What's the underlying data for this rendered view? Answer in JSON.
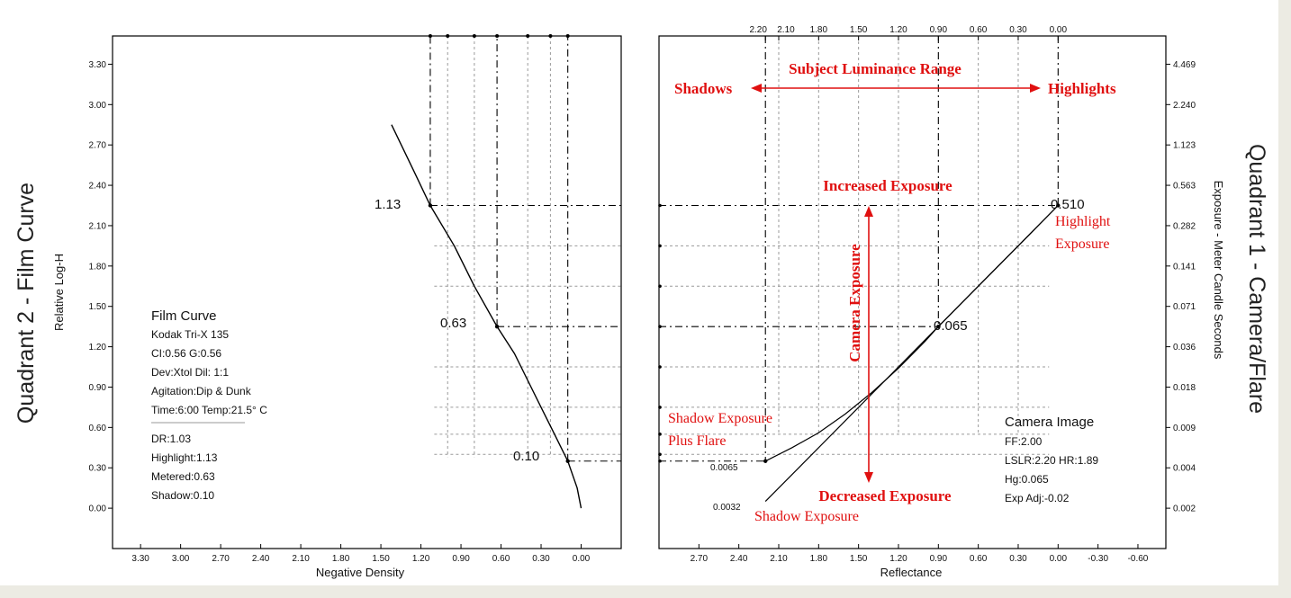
{
  "titles": {
    "quadrant2": "Quadrant 2 - Film Curve",
    "quadrant1": "Quadrant 1 - Camera/Flare"
  },
  "colors": {
    "annotation": "#e01010",
    "axis": "#000000",
    "grid": "#9a9a9a"
  },
  "chart_data": [
    {
      "type": "line",
      "ylabel": "Relative Log-H",
      "xlabel": "Negative Density",
      "x_reversed": true,
      "xlim": [
        3.51,
        -0.3
      ],
      "ylim": [
        -0.3,
        3.51
      ],
      "xticks": [
        "3.30",
        "3.00",
        "2.70",
        "2.40",
        "2.10",
        "1.80",
        "1.50",
        "1.20",
        "0.90",
        "0.60",
        "0.30",
        "0.00"
      ],
      "yticks": [
        "0.00",
        "0.30",
        "0.60",
        "0.90",
        "1.20",
        "1.50",
        "1.80",
        "2.10",
        "2.40",
        "2.70",
        "3.00",
        "3.30"
      ],
      "series": [
        {
          "x": [
            0.0,
            0.03,
            0.1,
            0.2,
            0.3,
            0.4,
            0.5,
            0.63,
            0.8,
            0.95,
            1.13,
            1.25,
            1.42
          ],
          "y": [
            0.0,
            0.15,
            0.35,
            0.55,
            0.75,
            0.95,
            1.15,
            1.35,
            1.65,
            1.95,
            2.25,
            2.5,
            2.85
          ]
        }
      ],
      "points": [
        {
          "label": "1.13",
          "x": 1.13,
          "y": 2.25
        },
        {
          "label": "0.63",
          "x": 0.63,
          "y": 1.35
        },
        {
          "label": "0.10",
          "x": 0.1,
          "y": 0.35
        }
      ],
      "info": {
        "title": "Film Curve",
        "lines": [
          "Kodak Tri-X 135",
          "CI:0.56  G:0.56",
          "Dev:Xtol  Dil: 1:1",
          "Agitation:Dip & Dunk",
          "Time:6:00  Temp:21.5° C"
        ],
        "lines2": [
          "DR:1.03",
          "Highlight:1.13",
          "Metered:0.63",
          "Shadow:0.10"
        ]
      }
    },
    {
      "type": "line",
      "xlabel": "Reflectance",
      "ylabel": "Exposure - Meter Candle Seconds",
      "x_reversed": true,
      "xlim": [
        3.0,
        -0.81
      ],
      "ylim": [
        -0.3,
        3.51
      ],
      "xticks": [
        "2.70",
        "2.40",
        "2.10",
        "1.80",
        "1.50",
        "1.20",
        "0.90",
        "0.60",
        "0.30",
        "0.00",
        "-0.30",
        "-0.60"
      ],
      "top_xticks": [
        "2.20",
        "2.10",
        "1.80",
        "1.50",
        "1.20",
        "0.90",
        "0.60",
        "0.30",
        "0.00"
      ],
      "right_yticks": [
        "0.002",
        "0.004",
        "0.009",
        "0.018",
        "0.036",
        "0.071",
        "0.141",
        "0.282",
        "0.563",
        "1.123",
        "2.240",
        "4.469"
      ],
      "series": [
        {
          "name": "Shadow Exposure Plus Flare",
          "x": [
            2.2,
            2.0,
            1.8,
            1.6,
            1.4,
            1.2,
            1.0,
            0.9,
            0.6,
            0.3,
            0.0
          ],
          "y": [
            0.35,
            0.45,
            0.56,
            0.7,
            0.86,
            1.04,
            1.24,
            1.35,
            1.65,
            1.95,
            2.25
          ]
        },
        {
          "name": "Shadow Exposure",
          "x": [
            2.2,
            1.9,
            1.6,
            1.3,
            1.0,
            0.9,
            0.6,
            0.3,
            0.0
          ],
          "y": [
            0.05,
            0.35,
            0.65,
            0.95,
            1.25,
            1.35,
            1.65,
            1.95,
            2.25
          ]
        }
      ],
      "point_labels": {
        "highlight": "0.510",
        "metered": "0.065",
        "shadow_flare": "0.0065",
        "shadow": "0.0032"
      },
      "annotations": {
        "range": "Subject Luminance Range",
        "shadows": "Shadows",
        "highlights": "Highlights",
        "increased": "Increased Exposure",
        "decreased": "Decreased Exposure",
        "camera_exposure": "Camera Exposure",
        "highlight_exposure_1": "Highlight",
        "highlight_exposure_2": "Exposure",
        "shadow_flare_1": "Shadow Exposure",
        "shadow_flare_2": "Plus Flare",
        "shadow_exposure": "Shadow Exposure"
      },
      "info": {
        "title": "Camera Image",
        "lines": [
          "FF:2.00",
          "LSLR:2.20 HR:1.89",
          "Hg:0.065",
          "Exp Adj:-0.02"
        ]
      }
    }
  ]
}
